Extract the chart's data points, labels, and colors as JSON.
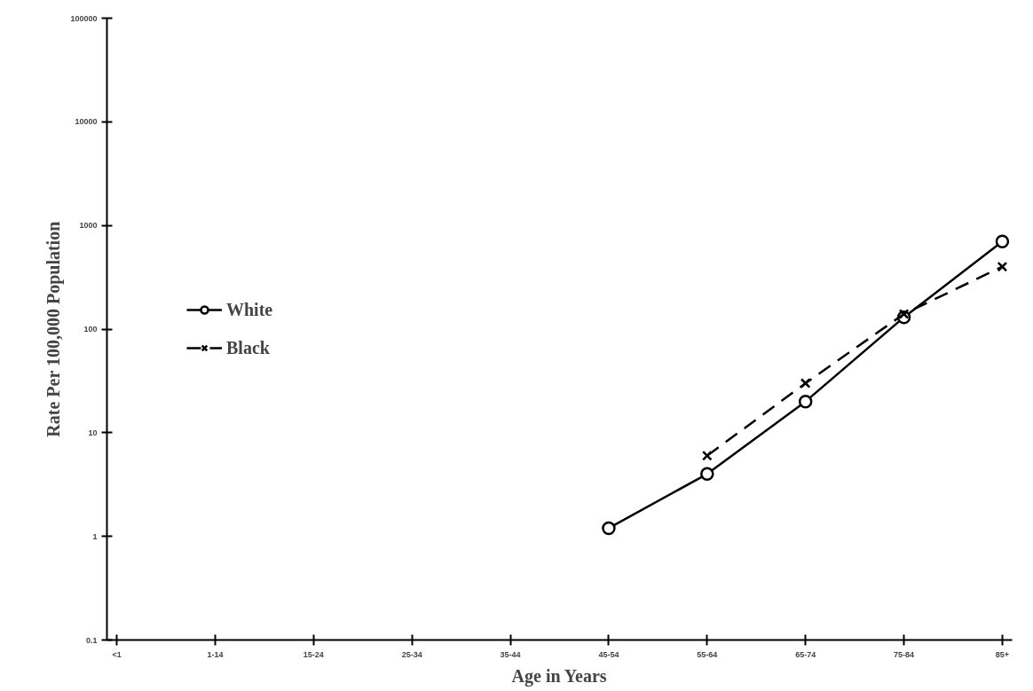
{
  "chart_data": {
    "type": "line",
    "xlabel": "Age in Years",
    "ylabel": "Rate Per 100,000 Population",
    "categories": [
      "<1",
      "1-14",
      "15-24",
      "25-34",
      "35-44",
      "45-54",
      "55-64",
      "65-74",
      "75-84",
      "85+"
    ],
    "series": [
      {
        "name": "White",
        "color": "#000000",
        "marker": "circle",
        "line_style": "solid",
        "values": [
          null,
          null,
          null,
          null,
          null,
          1.2,
          4,
          20,
          130,
          700
        ]
      },
      {
        "name": "Black",
        "color": "#000000",
        "marker": "cross",
        "line_style": "dashed",
        "values": [
          null,
          null,
          null,
          null,
          null,
          null,
          6,
          30,
          140,
          400
        ]
      }
    ],
    "log": true,
    "ylim": [
      0.1,
      100000
    ],
    "yticks": [
      0.1,
      1,
      10,
      100,
      1000,
      10000,
      100000
    ],
    "grid": false,
    "legend": "left"
  }
}
